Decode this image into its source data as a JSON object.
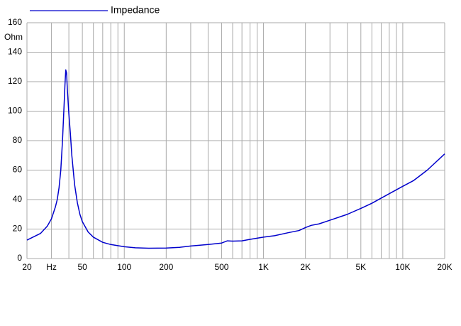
{
  "chart_data": {
    "type": "line",
    "y_label": "Ohm",
    "x": [
      20,
      25,
      28,
      30,
      32,
      33,
      34,
      35,
      36,
      37,
      37.5,
      38,
      38.5,
      39,
      40,
      41,
      42,
      44,
      46,
      48,
      50,
      55,
      60,
      70,
      80,
      100,
      120,
      150,
      200,
      250,
      300,
      400,
      500,
      550,
      600,
      700,
      800,
      1000,
      1200,
      1500,
      1800,
      2000,
      2200,
      2500,
      3000,
      4000,
      5000,
      6000,
      7000,
      8000,
      10000,
      12000,
      15000,
      20000
    ],
    "series": [
      {
        "name": "Impedance",
        "color": "#0000cc",
        "values": [
          12.5,
          17,
          22,
          27,
          35,
          40,
          48,
          60,
          80,
          105,
          118,
          128,
          126,
          115,
          98,
          85,
          70,
          50,
          38,
          30,
          25,
          18,
          14.5,
          11,
          9.5,
          8,
          7.3,
          7,
          7.1,
          7.6,
          8.5,
          9.5,
          10.5,
          12,
          11.8,
          12,
          13,
          14.5,
          15.5,
          17.5,
          19,
          21,
          22.5,
          23.5,
          26,
          30,
          34,
          37.5,
          41,
          44,
          49,
          53,
          60,
          71
        ]
      }
    ],
    "xlim": [
      20,
      20000
    ],
    "log_x": true,
    "xticks": [
      20,
      {
        "value": 30,
        "label": "Hz"
      },
      50,
      100,
      200,
      500,
      {
        "value": 1000,
        "label": "1K"
      },
      {
        "value": 2000,
        "label": "2K"
      },
      {
        "value": 5000,
        "label": "5K"
      },
      {
        "value": 10000,
        "label": "10K"
      },
      {
        "value": 20000,
        "label": "20K"
      }
    ],
    "x_minor_grid": [
      40,
      60,
      70,
      80,
      90,
      300,
      400,
      600,
      700,
      800,
      900,
      3000,
      4000,
      6000,
      7000,
      8000,
      9000
    ],
    "ylim": [
      0,
      160
    ],
    "yticks": [
      0,
      20,
      40,
      60,
      80,
      100,
      120,
      140,
      160
    ],
    "grid": true,
    "legend": "top-left"
  }
}
